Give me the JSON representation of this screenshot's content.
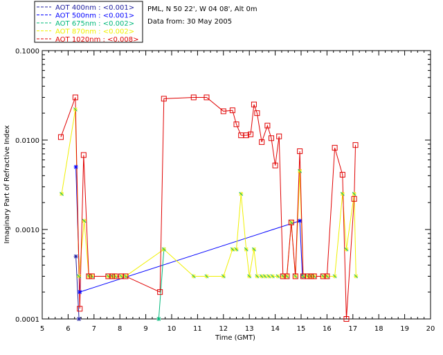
{
  "header": {
    "site": "PML, N 50 22', W 04 08', Alt 0m",
    "date": "Data from: 30 May 2005"
  },
  "chart_data": {
    "type": "line",
    "title": "",
    "xlabel": "Time (GMT)",
    "ylabel": "Imaginary Part of Refractive Index",
    "xlim": [
      5,
      20
    ],
    "ylim": [
      0.0001,
      0.1
    ],
    "yscale": "log",
    "x_ticks": [
      5,
      6,
      7,
      8,
      9,
      10,
      11,
      12,
      13,
      14,
      15,
      16,
      17,
      18,
      19,
      20
    ],
    "y_ticks": [
      {
        "value": 0.0001,
        "label": "0.0001"
      },
      {
        "value": 0.001,
        "label": "0.0010"
      },
      {
        "value": 0.01,
        "label": "0.0100"
      },
      {
        "value": 0.1,
        "label": "0.1000"
      }
    ],
    "legend": {
      "placement": "top-left",
      "entries": [
        {
          "label": "AOT  400nm : <0.001>",
          "color": "#2020a0"
        },
        {
          "label": "AOT  500nm : <0.001>",
          "color": "#0000ff"
        },
        {
          "label": "AOT  675nm : <0.002>",
          "color": "#00b87a"
        },
        {
          "label": "AOT  870nm : <0.002>",
          "color": "#f0f000"
        },
        {
          "label": "AOT 1020nm : <0.008>",
          "color": "#e00000"
        }
      ]
    },
    "series": [
      {
        "name": "400nm",
        "color": "#2020a0",
        "points": [
          [
            6.3,
            0.0005
          ],
          [
            6.42,
            0.0001
          ]
        ]
      },
      {
        "name": "500nm",
        "color": "#0000ff",
        "points": [
          [
            6.3,
            0.005
          ],
          [
            6.45,
            0.0002
          ],
          [
            14.95,
            0.00125
          ],
          [
            15.05,
            0.0003
          ]
        ]
      },
      {
        "name": "675nm",
        "color": "#00b87a",
        "points": [
          [
            9.5,
            0.0001
          ],
          [
            9.7,
            0.0006
          ]
        ]
      },
      {
        "name": "870nm",
        "color": "#f0f000",
        "points": [
          [
            5.75,
            0.0025
          ],
          [
            6.28,
            0.022
          ],
          [
            6.42,
            0.0003
          ],
          [
            6.62,
            0.00125
          ],
          [
            6.8,
            0.0003
          ],
          [
            6.92,
            0.0003
          ],
          [
            7.55,
            0.0003
          ],
          [
            7.7,
            0.0003
          ],
          [
            7.82,
            0.0003
          ],
          [
            8.05,
            0.0003
          ],
          [
            8.22,
            0.0003
          ],
          [
            9.7,
            0.0006
          ],
          [
            10.85,
            0.0003
          ],
          [
            11.35,
            0.0003
          ],
          [
            12.0,
            0.0003
          ],
          [
            12.35,
            0.0006
          ],
          [
            12.5,
            0.0006
          ],
          [
            12.68,
            0.0025
          ],
          [
            12.88,
            0.0006
          ],
          [
            13.0,
            0.0003
          ],
          [
            13.18,
            0.0006
          ],
          [
            13.3,
            0.0003
          ],
          [
            13.47,
            0.0003
          ],
          [
            13.6,
            0.0003
          ],
          [
            13.75,
            0.0003
          ],
          [
            13.9,
            0.0003
          ],
          [
            14.1,
            0.0003
          ],
          [
            14.3,
            0.0003
          ],
          [
            14.45,
            0.0003
          ],
          [
            14.62,
            0.0012
          ],
          [
            14.78,
            0.0003
          ],
          [
            14.95,
            0.0045
          ],
          [
            15.08,
            0.0003
          ],
          [
            15.25,
            0.0003
          ],
          [
            15.38,
            0.0003
          ],
          [
            15.5,
            0.0003
          ],
          [
            15.85,
            0.0003
          ],
          [
            16.0,
            0.0003
          ],
          [
            16.3,
            0.0003
          ],
          [
            16.6,
            0.0025
          ],
          [
            16.75,
            0.0006
          ],
          [
            17.05,
            0.0025
          ],
          [
            17.12,
            0.0003
          ]
        ]
      },
      {
        "name": "1020nm",
        "color": "#e00000",
        "points": [
          [
            5.72,
            0.0108
          ],
          [
            6.28,
            0.03
          ],
          [
            6.45,
            0.00013
          ],
          [
            6.6,
            0.0068
          ],
          [
            6.8,
            0.0003
          ],
          [
            6.92,
            0.0003
          ],
          [
            7.55,
            0.0003
          ],
          [
            7.7,
            0.0003
          ],
          [
            7.82,
            0.0003
          ],
          [
            8.05,
            0.0003
          ],
          [
            8.22,
            0.0003
          ],
          [
            9.55,
            0.0002
          ],
          [
            9.7,
            0.029
          ],
          [
            10.85,
            0.03
          ],
          [
            11.35,
            0.03
          ],
          [
            12.0,
            0.021
          ],
          [
            12.35,
            0.0215
          ],
          [
            12.5,
            0.015
          ],
          [
            12.68,
            0.0113
          ],
          [
            12.88,
            0.0113
          ],
          [
            13.05,
            0.0116
          ],
          [
            13.18,
            0.025
          ],
          [
            13.3,
            0.02
          ],
          [
            13.48,
            0.0095
          ],
          [
            13.7,
            0.0145
          ],
          [
            13.85,
            0.0105
          ],
          [
            14.0,
            0.0052
          ],
          [
            14.15,
            0.011
          ],
          [
            14.3,
            0.0003
          ],
          [
            14.45,
            0.0003
          ],
          [
            14.62,
            0.0012
          ],
          [
            14.78,
            0.0003
          ],
          [
            14.95,
            0.0075
          ],
          [
            15.08,
            0.0003
          ],
          [
            15.25,
            0.0003
          ],
          [
            15.38,
            0.0003
          ],
          [
            15.5,
            0.0003
          ],
          [
            15.85,
            0.0003
          ],
          [
            16.0,
            0.0003
          ],
          [
            16.3,
            0.0082
          ],
          [
            16.6,
            0.0041
          ],
          [
            16.75,
            0.0001
          ],
          [
            17.05,
            0.0022
          ],
          [
            17.1,
            0.0088
          ]
        ]
      }
    ]
  }
}
